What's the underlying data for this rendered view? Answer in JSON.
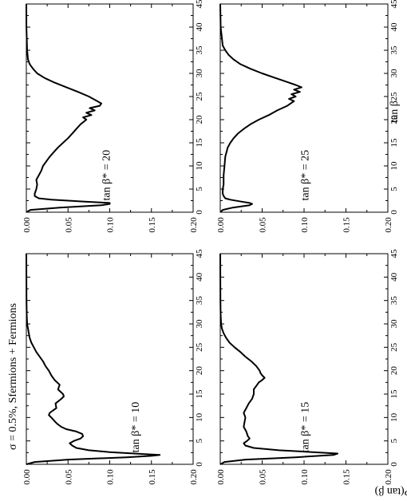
{
  "figure": {
    "title": "σ = 0.5%, Sfermions + Fermions",
    "x_axis_label": "tan β",
    "y_axis_label": "P(tan β)"
  },
  "chart_data": [
    {
      "type": "line",
      "panel": "bottom-left",
      "annotation": "tan β* = 10",
      "xlabel": "",
      "ylabel": "",
      "xlim": [
        0,
        45
      ],
      "ylim": [
        0,
        0.2
      ],
      "x_ticks": [
        "0",
        "5",
        "10",
        "15",
        "20",
        "25",
        "30",
        "35",
        "40",
        "45"
      ],
      "y_ticks": [
        "0.00",
        "0.05",
        "0.10",
        "0.15",
        "0.20"
      ],
      "x": [
        0,
        0.5,
        1.0,
        1.5,
        1.8,
        2.0,
        2.2,
        2.6,
        3.0,
        3.5,
        4.0,
        4.5,
        5.0,
        5.5,
        6.0,
        6.5,
        7.0,
        7.5,
        8.0,
        8.5,
        9.0,
        10.0,
        10.5,
        11.0,
        11.5,
        12.0,
        13.0,
        14.0,
        14.5,
        15.0,
        16.0,
        17.0,
        18.0,
        19.0,
        20.0,
        21.0,
        22.0,
        23.0,
        24.0,
        25.0,
        26.0,
        27.0,
        28.0,
        29.0,
        30.0,
        32.0,
        35.0,
        40.0,
        45.0
      ],
      "y": [
        0.0,
        0.01,
        0.05,
        0.12,
        0.15,
        0.16,
        0.14,
        0.1,
        0.075,
        0.06,
        0.055,
        0.052,
        0.057,
        0.065,
        0.068,
        0.067,
        0.06,
        0.048,
        0.042,
        0.038,
        0.035,
        0.03,
        0.027,
        0.028,
        0.032,
        0.036,
        0.035,
        0.042,
        0.045,
        0.044,
        0.038,
        0.04,
        0.034,
        0.03,
        0.027,
        0.023,
        0.02,
        0.016,
        0.012,
        0.009,
        0.006,
        0.004,
        0.003,
        0.002,
        0.001,
        0.0005,
        0.0002,
        0.0001,
        0.0
      ],
      "label_pos": [
        2.5,
        0.135
      ]
    },
    {
      "type": "line",
      "panel": "top-left",
      "annotation": "tan β* = 15",
      "xlabel": "",
      "ylabel": "",
      "xlim": [
        0,
        45
      ],
      "ylim": [
        0,
        0.2
      ],
      "x_ticks": [
        "0",
        "5",
        "10",
        "15",
        "20",
        "25",
        "30",
        "35",
        "40",
        "45"
      ],
      "y_ticks": [
        "0.00",
        "0.05",
        "0.10",
        "0.15",
        "0.20"
      ],
      "x": [
        0,
        0.5,
        1.0,
        1.5,
        2.0,
        2.3,
        2.6,
        3.0,
        3.5,
        4.0,
        4.5,
        5.0,
        5.5,
        6.0,
        7.0,
        8.0,
        9.0,
        10.0,
        11.0,
        12.0,
        13.0,
        14.0,
        15.0,
        16.0,
        16.5,
        17.0,
        17.5,
        18.0,
        18.5,
        19.0,
        19.5,
        20.0,
        21.0,
        22.0,
        23.0,
        24.0,
        25.0,
        26.0,
        27.0,
        28.0,
        29.0,
        30.0,
        32.0,
        35.0,
        40.0,
        45.0
      ],
      "y": [
        0.0,
        0.005,
        0.03,
        0.09,
        0.135,
        0.14,
        0.11,
        0.07,
        0.04,
        0.03,
        0.028,
        0.032,
        0.035,
        0.033,
        0.031,
        0.028,
        0.029,
        0.03,
        0.028,
        0.031,
        0.034,
        0.038,
        0.04,
        0.04,
        0.042,
        0.044,
        0.046,
        0.05,
        0.053,
        0.05,
        0.048,
        0.047,
        0.043,
        0.037,
        0.03,
        0.024,
        0.017,
        0.011,
        0.007,
        0.004,
        0.002,
        0.001,
        0.0005,
        0.0002,
        0.0001,
        0.0
      ],
      "label_pos": [
        2.5,
        0.105
      ]
    },
    {
      "type": "line",
      "panel": "bottom-right",
      "annotation": "tan β* = 20",
      "xlabel": "",
      "ylabel": "",
      "xlim": [
        0,
        45
      ],
      "ylim": [
        0,
        0.2
      ],
      "x_ticks": [
        "0",
        "5",
        "10",
        "15",
        "20",
        "25",
        "30",
        "35",
        "40",
        "45"
      ],
      "y_ticks": [
        "0.00",
        "0.05",
        "0.10",
        "0.15",
        "0.20"
      ],
      "x": [
        0,
        0.5,
        1.0,
        1.5,
        1.8,
        2.0,
        2.3,
        2.7,
        3.0,
        3.5,
        4.0,
        5.0,
        6.0,
        7.0,
        8.0,
        9.0,
        10.0,
        11.0,
        12.0,
        13.0,
        14.0,
        15.0,
        16.0,
        17.0,
        18.0,
        19.0,
        20.0,
        20.5,
        21.0,
        21.5,
        22.0,
        22.5,
        23.0,
        23.5,
        24.0,
        25.0,
        26.0,
        27.0,
        28.0,
        29.0,
        30.0,
        31.0,
        32.0,
        33.0,
        35.0,
        40.0,
        45.0
      ],
      "y": [
        0.0,
        0.005,
        0.04,
        0.09,
        0.1,
        0.1,
        0.07,
        0.03,
        0.015,
        0.01,
        0.01,
        0.012,
        0.013,
        0.012,
        0.015,
        0.018,
        0.02,
        0.024,
        0.028,
        0.033,
        0.038,
        0.044,
        0.05,
        0.055,
        0.06,
        0.065,
        0.072,
        0.068,
        0.078,
        0.072,
        0.082,
        0.076,
        0.088,
        0.09,
        0.085,
        0.075,
        0.062,
        0.048,
        0.034,
        0.022,
        0.013,
        0.008,
        0.004,
        0.002,
        0.001,
        0.0001,
        0.0
      ],
      "label_pos": [
        2.5,
        0.1
      ]
    },
    {
      "type": "line",
      "panel": "top-right",
      "annotation": "tan β* = 25",
      "xlabel": "tan β",
      "ylabel": "",
      "xlim": [
        0,
        45
      ],
      "ylim": [
        0,
        0.2
      ],
      "x_ticks": [
        "0",
        "5",
        "10",
        "15",
        "20",
        "25",
        "30",
        "35",
        "40",
        "45"
      ],
      "y_ticks": [
        "0.00",
        "0.05",
        "0.10",
        "0.15",
        "0.20"
      ],
      "x": [
        0,
        0.5,
        1.0,
        1.5,
        1.8,
        2.0,
        2.3,
        2.7,
        3.0,
        3.5,
        4.0,
        5.0,
        6.0,
        8.0,
        10.0,
        12.0,
        14.0,
        15.0,
        16.0,
        17.0,
        18.0,
        19.0,
        20.0,
        21.0,
        22.0,
        23.0,
        24.0,
        24.5,
        25.0,
        25.5,
        26.0,
        26.5,
        27.0,
        27.5,
        28.0,
        29.0,
        30.0,
        31.0,
        32.0,
        33.0,
        34.0,
        35.0,
        36.0,
        40.0,
        45.0
      ],
      "y": [
        0.0,
        0.003,
        0.015,
        0.035,
        0.038,
        0.035,
        0.025,
        0.012,
        0.006,
        0.004,
        0.003,
        0.003,
        0.004,
        0.004,
        0.005,
        0.006,
        0.009,
        0.012,
        0.016,
        0.021,
        0.028,
        0.036,
        0.046,
        0.058,
        0.068,
        0.08,
        0.088,
        0.082,
        0.09,
        0.085,
        0.095,
        0.088,
        0.097,
        0.09,
        0.082,
        0.066,
        0.05,
        0.036,
        0.024,
        0.016,
        0.01,
        0.006,
        0.003,
        0.0005,
        0.0
      ],
      "label_pos": [
        2.5,
        0.105
      ]
    }
  ]
}
